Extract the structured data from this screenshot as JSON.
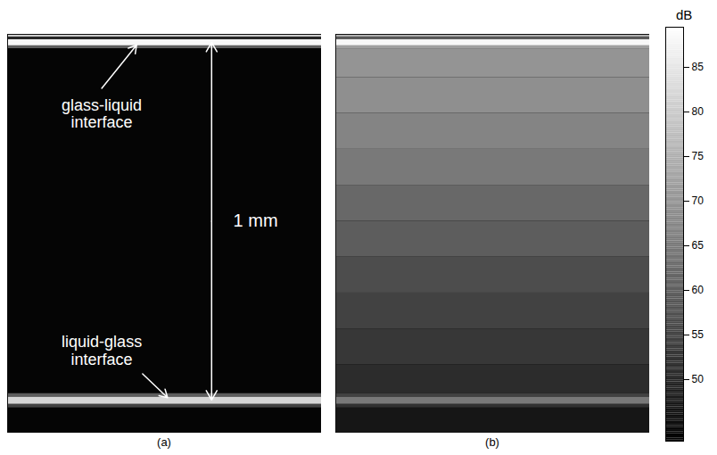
{
  "chart_data": {
    "type": "heatmap",
    "tick_labels": false,
    "ylim": [
      -0.02,
      1.09
    ],
    "colorbar": {
      "title": "dB",
      "range": [
        43,
        89.5
      ],
      "ticks": [
        50,
        55,
        60,
        65,
        70,
        75,
        80,
        85
      ]
    },
    "panels": [
      {
        "label": "(a)",
        "depth_edges": [
          -0.02,
          -0.012,
          -0.005,
          0.012,
          0.02,
          0.98,
          0.99,
          1.01,
          1.02,
          1.09
        ],
        "values": [
          80,
          50,
          88,
          60,
          44,
          60,
          82,
          55,
          44
        ],
        "annotations": [
          {
            "text": "glass-liquid interface",
            "depth": 0
          },
          {
            "text": "liquid-glass interface",
            "depth": 1
          },
          {
            "text": "1 mm",
            "from": 0,
            "to": 1
          }
        ]
      },
      {
        "label": "(b)",
        "depth_edges": [
          -0.02,
          -0.012,
          -0.005,
          0.012,
          0.02,
          0.1,
          0.2,
          0.3,
          0.4,
          0.5,
          0.6,
          0.7,
          0.8,
          0.9,
          0.98,
          0.99,
          1.01,
          1.02,
          1.09
        ],
        "values": [
          75,
          60,
          88,
          72,
          70,
          69,
          67,
          65,
          62,
          60,
          57,
          55,
          53,
          51,
          55,
          65,
          52,
          47
        ],
        "annotations": []
      }
    ]
  }
}
